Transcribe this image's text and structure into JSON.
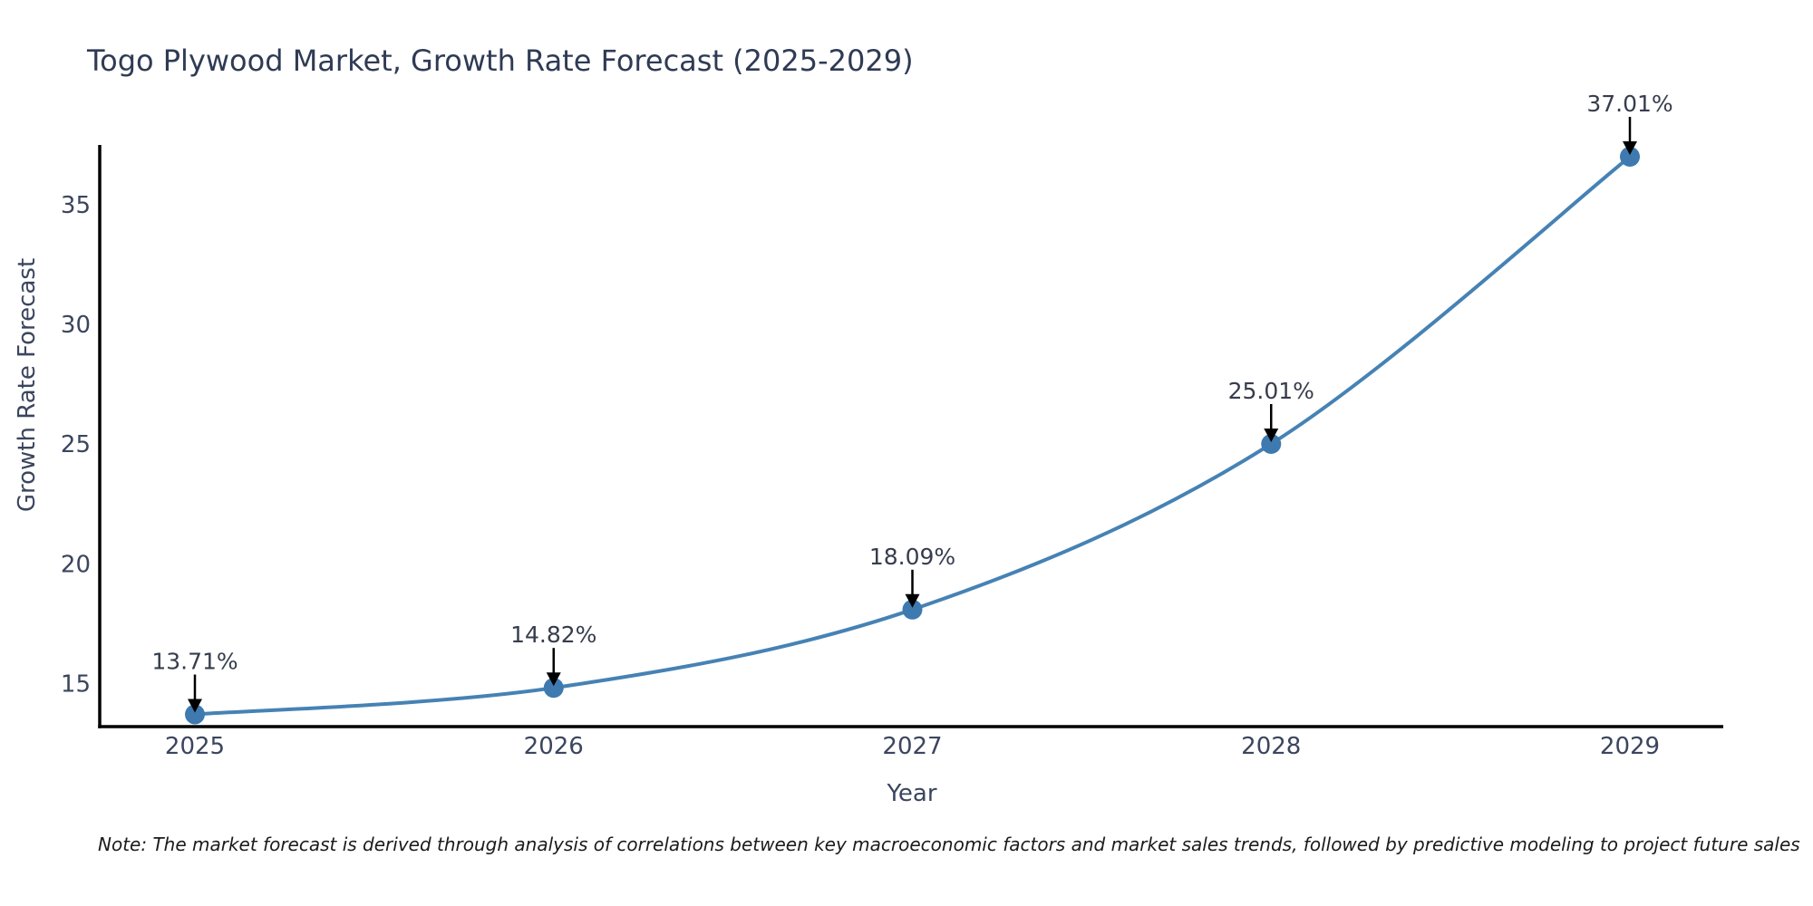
{
  "title": "Togo Plywood Market, Growth Rate Forecast (2025-2029)",
  "note": "Note: The market forecast is derived through analysis of correlations between key macroeconomic factors and market sales trends, followed by predictive modeling to project future sales",
  "chart_data": {
    "type": "line",
    "title": "Togo Plywood Market, Growth Rate Forecast (2025-2029)",
    "categories": [
      "2025",
      "2026",
      "2027",
      "2028",
      "2029"
    ],
    "series": [
      {
        "name": "Growth Rate Forecast",
        "values": [
          13.71,
          14.82,
          18.09,
          25.01,
          37.01
        ]
      }
    ],
    "point_labels": [
      "13.71%",
      "14.82%",
      "18.09%",
      "25.01%",
      "37.01%"
    ],
    "xlabel": "Year",
    "ylabel": "Growth Rate Forecast",
    "ylim": [
      13.2,
      37.5
    ],
    "yticks": [
      15,
      20,
      25,
      30,
      35
    ],
    "grid": false,
    "legend": "none",
    "line_color": "#4682b4",
    "marker_color": "#3e79b0",
    "axis_color": "#000000",
    "annotation_color": "#000000"
  }
}
